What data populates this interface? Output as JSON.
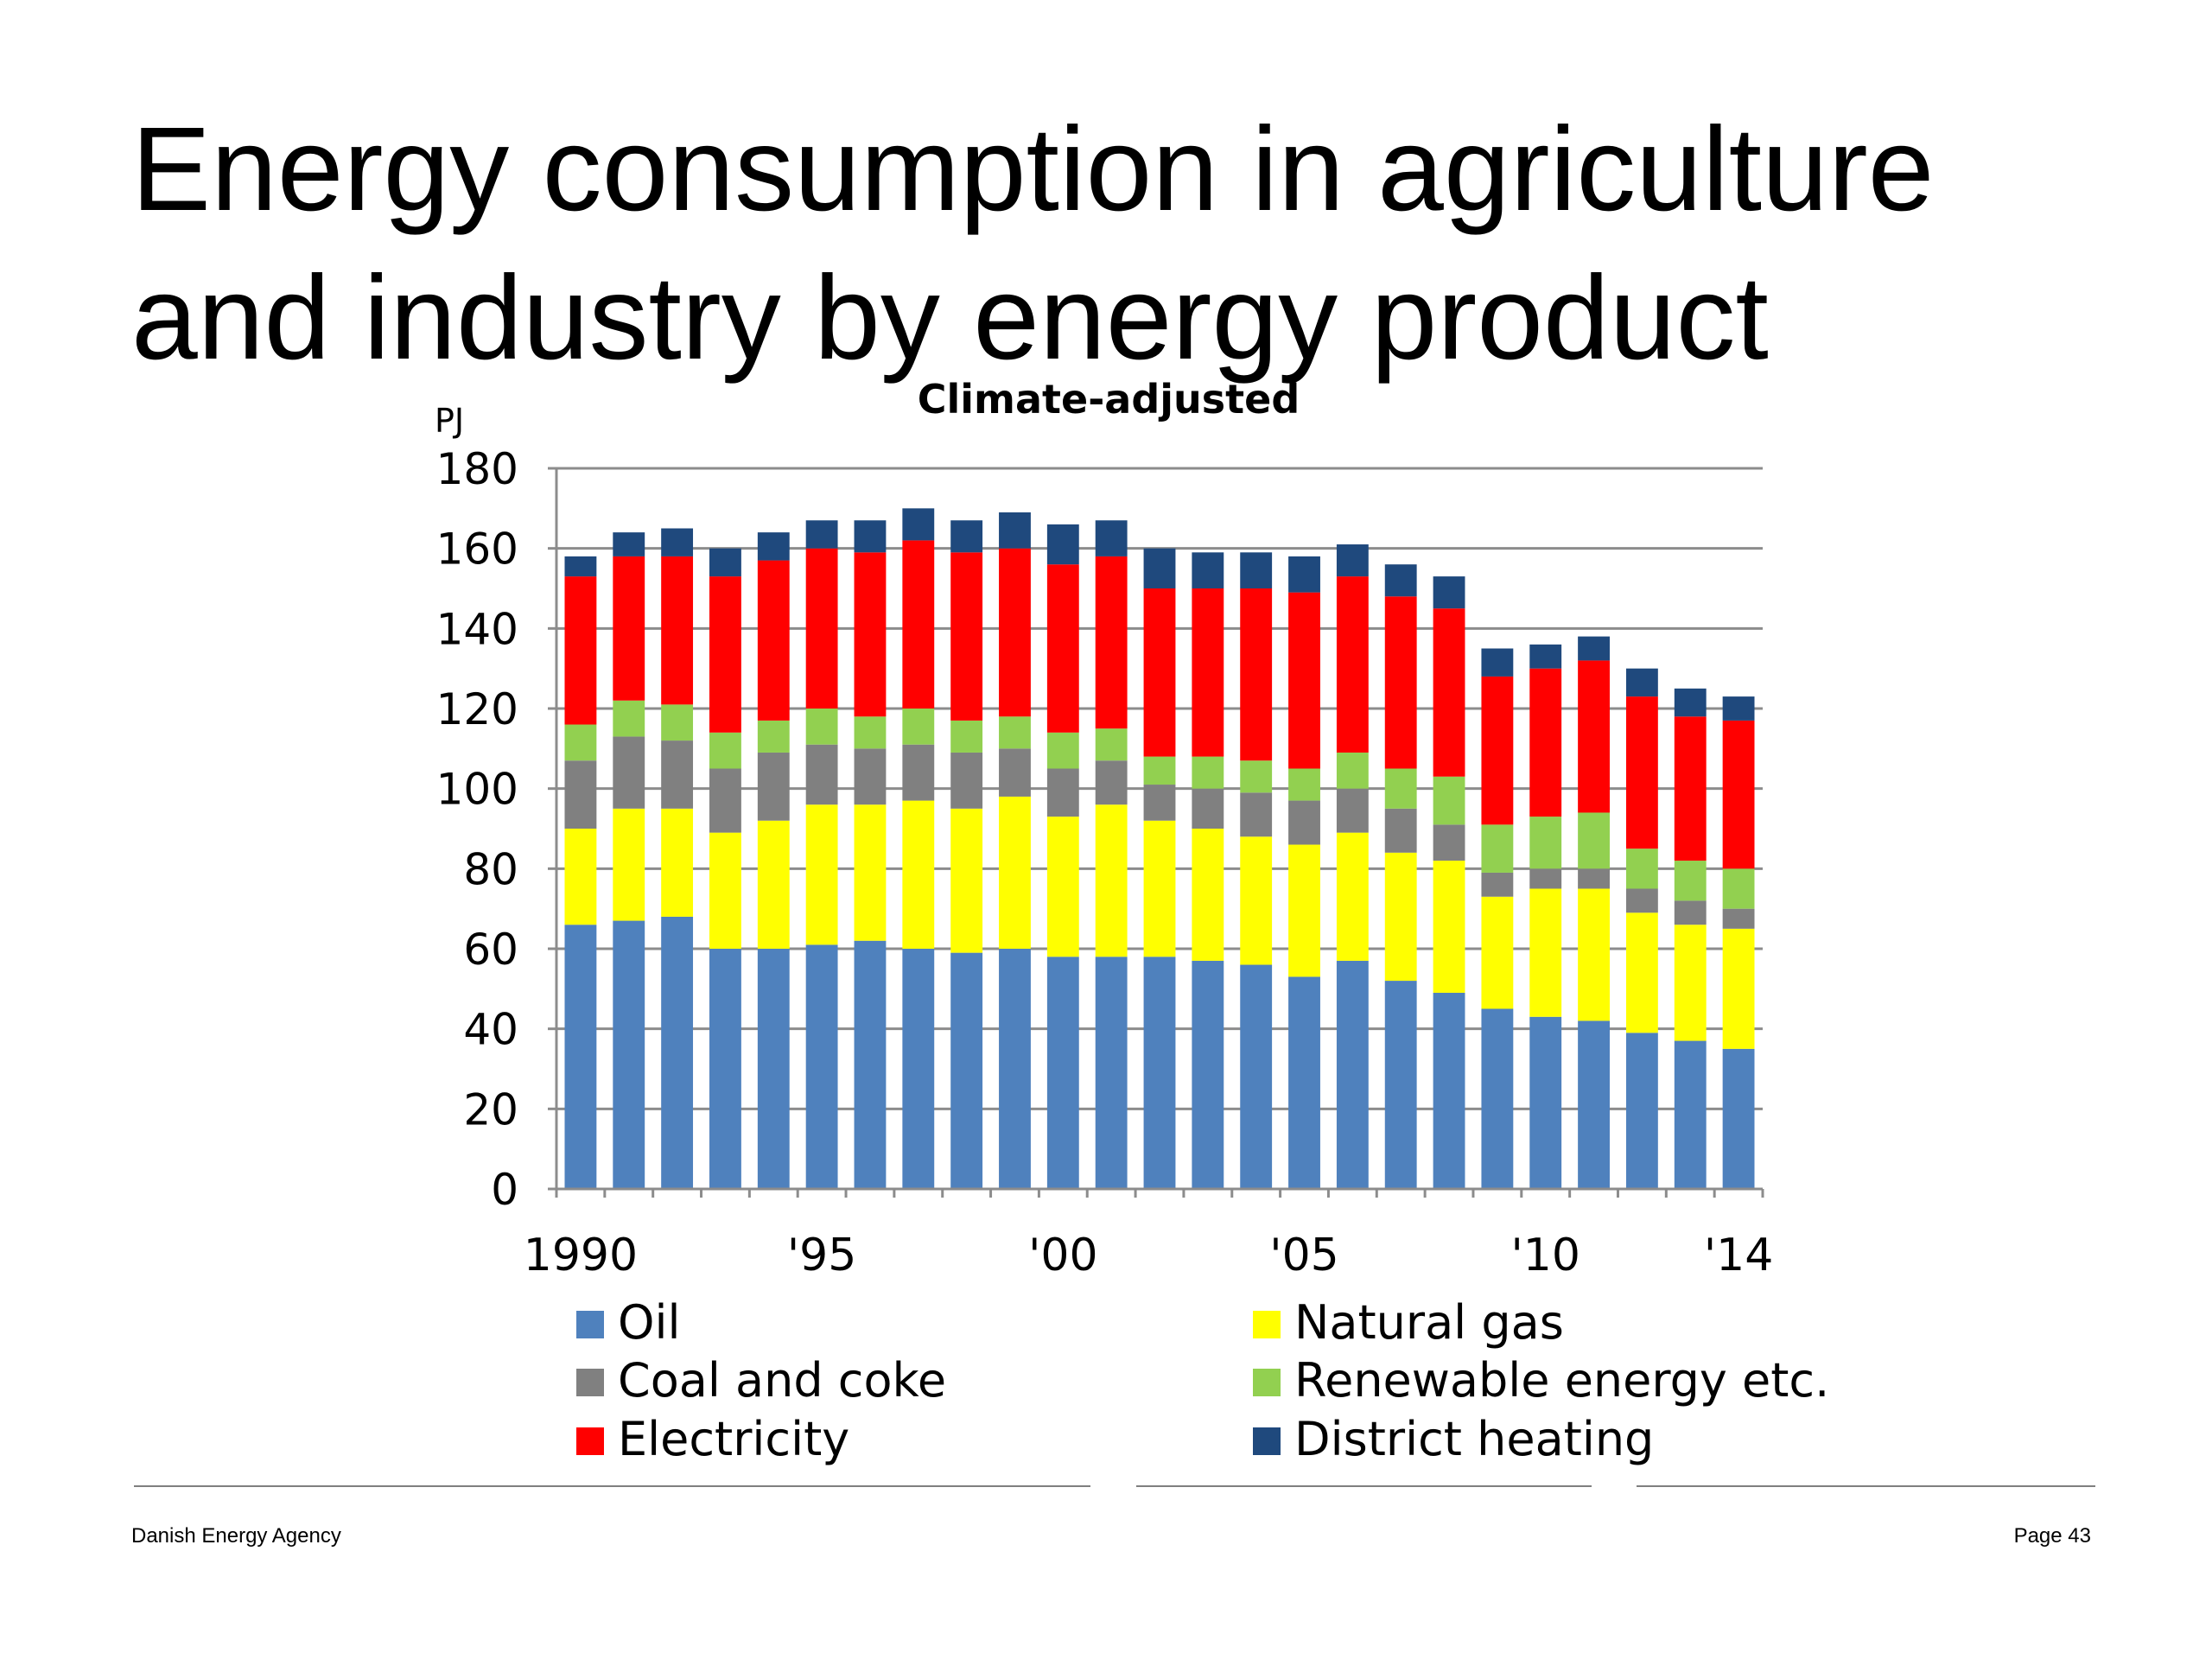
{
  "slide": {
    "title_line1": "Energy consumption in agriculture",
    "title_line2": "and industry by energy product",
    "footer_left": "Danish Energy Agency",
    "footer_right": "Page 43"
  },
  "chart_data": {
    "type": "bar",
    "stacked": true,
    "subtitle": "Climate-adjusted",
    "ylabel": "PJ",
    "ylim": [
      0,
      180
    ],
    "yticks": [
      0,
      20,
      40,
      60,
      80,
      100,
      120,
      140,
      160,
      180
    ],
    "x": [
      1990,
      1991,
      1992,
      1993,
      1994,
      1995,
      1996,
      1997,
      1998,
      1999,
      2000,
      2001,
      2002,
      2003,
      2004,
      2005,
      2006,
      2007,
      2008,
      2009,
      2010,
      2011,
      2012,
      2013,
      2014
    ],
    "xtick_labels": [
      "1990",
      "'95",
      "'00",
      "'05",
      "'10",
      "'14"
    ],
    "xtick_years": [
      1990,
      1995,
      2000,
      2005,
      2010,
      2014
    ],
    "grid": true,
    "legend_position": "bottom",
    "series": [
      {
        "name": "Oil",
        "color": "#4F81BD",
        "values": [
          66,
          67,
          68,
          60,
          60,
          61,
          62,
          60,
          59,
          60,
          58,
          58,
          58,
          57,
          56,
          53,
          57,
          52,
          49,
          45,
          43,
          42,
          39,
          37,
          35
        ]
      },
      {
        "name": "Natural gas",
        "color": "#FFFF00",
        "values": [
          24,
          28,
          27,
          29,
          32,
          35,
          34,
          37,
          36,
          38,
          35,
          38,
          34,
          33,
          32,
          33,
          32,
          32,
          33,
          28,
          32,
          33,
          30,
          29,
          30
        ]
      },
      {
        "name": "Coal and coke",
        "color": "#808080",
        "values": [
          17,
          18,
          17,
          16,
          17,
          15,
          14,
          14,
          14,
          12,
          12,
          11,
          9,
          10,
          11,
          11,
          11,
          11,
          9,
          6,
          5,
          5,
          6,
          6,
          5
        ]
      },
      {
        "name": "Renewable energy etc.",
        "color": "#92D050",
        "values": [
          9,
          9,
          9,
          9,
          8,
          9,
          8,
          9,
          8,
          8,
          9,
          8,
          7,
          8,
          8,
          8,
          9,
          10,
          12,
          12,
          13,
          14,
          10,
          10,
          10
        ]
      },
      {
        "name": "Electricity",
        "color": "#FF0000",
        "values": [
          37,
          36,
          37,
          39,
          40,
          40,
          41,
          42,
          42,
          42,
          42,
          43,
          42,
          42,
          43,
          44,
          44,
          43,
          42,
          37,
          37,
          38,
          38,
          36,
          37
        ]
      },
      {
        "name": "District heating",
        "color": "#1F497D",
        "values": [
          5,
          6,
          7,
          7,
          7,
          7,
          8,
          8,
          8,
          9,
          10,
          9,
          10,
          9,
          9,
          9,
          8,
          8,
          8,
          7,
          6,
          6,
          7,
          7,
          6
        ]
      }
    ],
    "legend_order": [
      "Oil",
      "Natural gas",
      "Coal and coke",
      "Renewable energy etc.",
      "Electricity",
      "District heating"
    ]
  }
}
